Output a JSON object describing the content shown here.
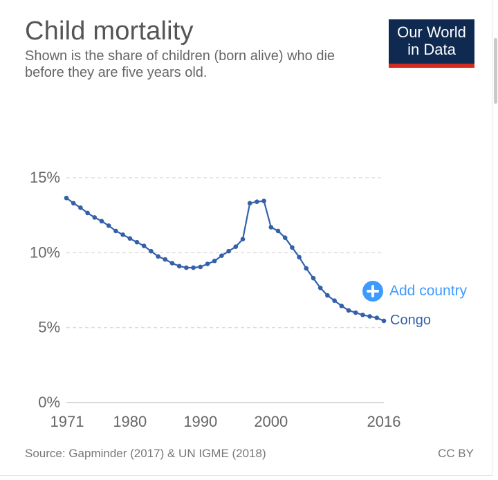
{
  "header": {
    "title": "Child mortality",
    "subtitle": "Shown is the share of children (born alive) who die before they are five years old."
  },
  "logo": {
    "line1": "Our World",
    "line2": "in Data"
  },
  "controls": {
    "add_country_label": "Add country"
  },
  "footer": {
    "source": "Source: Gapminder (2017) & UN IGME (2018)",
    "license": "CC BY"
  },
  "colors": {
    "series": "#3360a9",
    "accent": "#3d9bff",
    "logo_bg": "#0f2950",
    "logo_bar": "#d42b21",
    "grid": "#dddddd"
  },
  "chart_data": {
    "type": "line",
    "title": "Child mortality",
    "subtitle": "Shown is the share of children (born alive) who die before they are five years old.",
    "xlabel": "",
    "ylabel": "",
    "xlim": [
      1971,
      2016
    ],
    "ylim": [
      0,
      15
    ],
    "x_ticks": [
      "1971",
      "1980",
      "1990",
      "2000",
      "2016"
    ],
    "y_ticks": [
      "0%",
      "5%",
      "10%",
      "15%"
    ],
    "grid": "horizontal dashed",
    "series": [
      {
        "name": "Congo",
        "color": "#3360a9",
        "x": [
          1971,
          1972,
          1973,
          1974,
          1975,
          1976,
          1977,
          1978,
          1979,
          1980,
          1981,
          1982,
          1983,
          1984,
          1985,
          1986,
          1987,
          1988,
          1989,
          1990,
          1991,
          1992,
          1993,
          1994,
          1995,
          1996,
          1997,
          1998,
          1999,
          2000,
          2001,
          2002,
          2003,
          2004,
          2005,
          2006,
          2007,
          2008,
          2009,
          2010,
          2011,
          2012,
          2013,
          2014,
          2015,
          2016
        ],
        "values": [
          13.65,
          13.3,
          13.0,
          12.65,
          12.35,
          12.1,
          11.8,
          11.45,
          11.2,
          10.95,
          10.7,
          10.45,
          10.1,
          9.75,
          9.55,
          9.3,
          9.1,
          9.0,
          9.0,
          9.05,
          9.25,
          9.45,
          9.8,
          10.1,
          10.4,
          10.9,
          13.3,
          13.4,
          13.45,
          11.7,
          11.45,
          11.0,
          10.35,
          9.7,
          8.95,
          8.3,
          7.65,
          7.15,
          6.8,
          6.45,
          6.15,
          6.0,
          5.85,
          5.75,
          5.65,
          5.45
        ]
      }
    ]
  }
}
